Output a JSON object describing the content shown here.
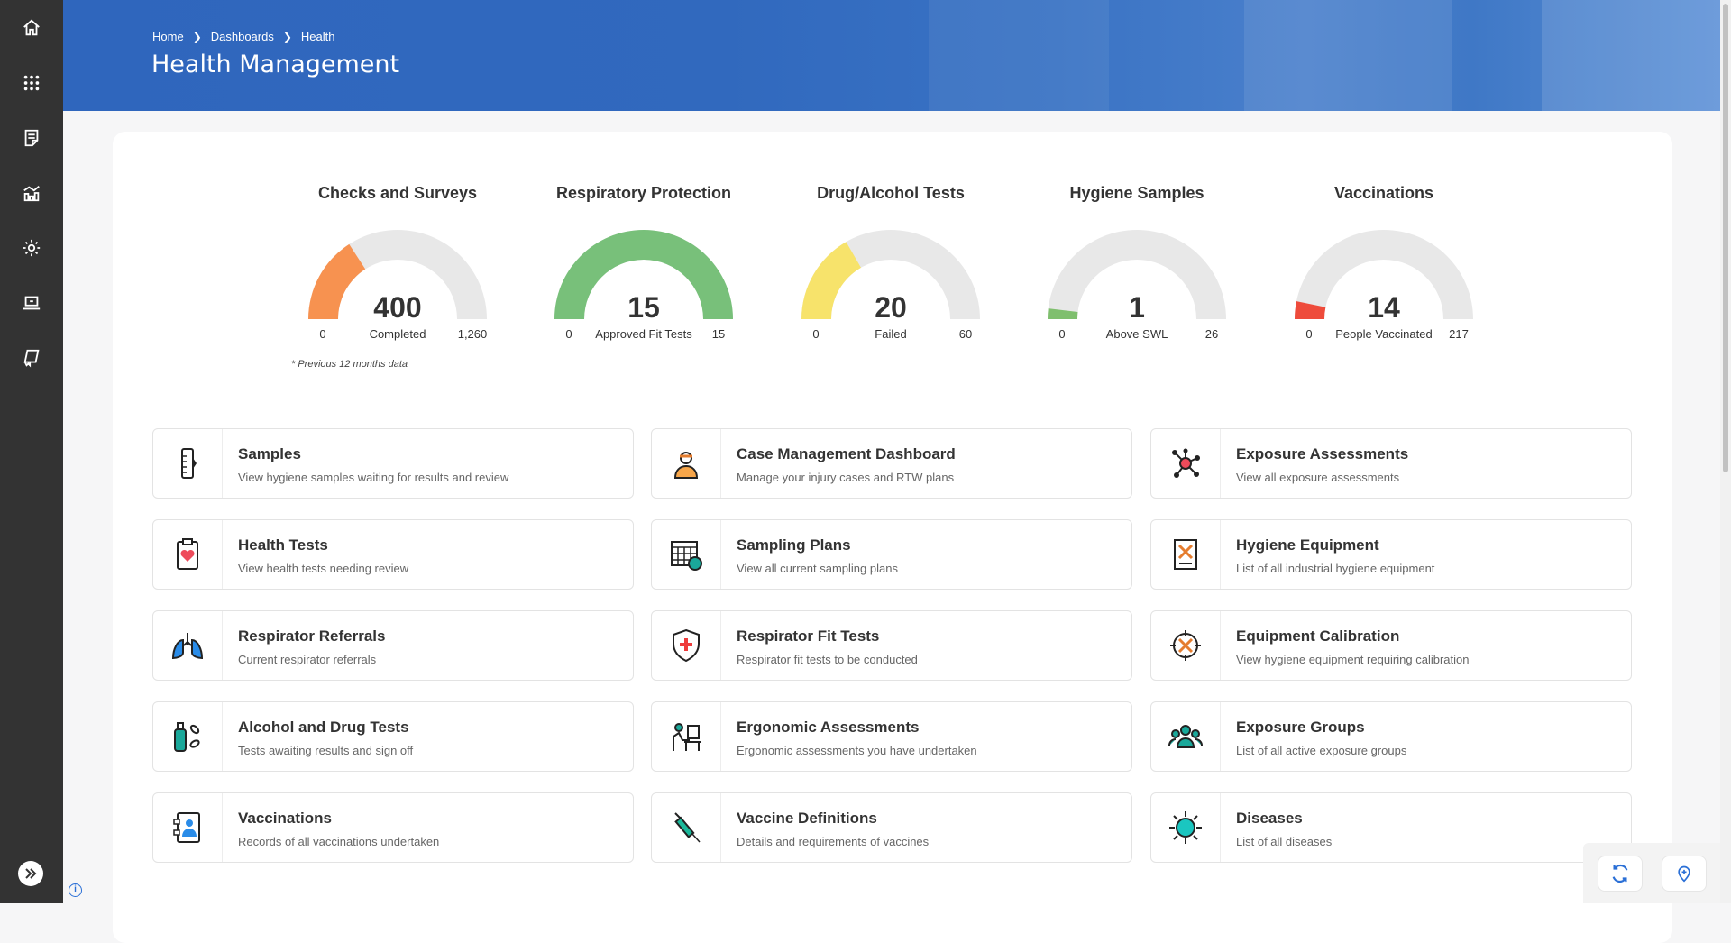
{
  "breadcrumb": [
    "Home",
    "Dashboards",
    "Health"
  ],
  "page_title": "Health Management",
  "sidebar": {
    "items": [
      "home-icon",
      "apps-grid-icon",
      "document-icon",
      "chart-icon",
      "gear-icon",
      "laptop-icon",
      "book-icon"
    ]
  },
  "gauges": [
    {
      "title": "Checks and Surveys",
      "value": 400,
      "value_text": "400",
      "label": "Completed",
      "min": "0",
      "max": 1260,
      "max_text": "1,260",
      "color": "#f79250"
    },
    {
      "title": "Respiratory Protection",
      "value": 15,
      "value_text": "15",
      "label": "Approved Fit Tests",
      "min": "0",
      "max": 15,
      "max_text": "15",
      "color": "#78c07a"
    },
    {
      "title": "Drug/Alcohol Tests",
      "value": 20,
      "value_text": "20",
      "label": "Failed",
      "min": "0",
      "max": 60,
      "max_text": "60",
      "color": "#f7e36b"
    },
    {
      "title": "Hygiene Samples",
      "value": 1,
      "value_text": "1",
      "label": "Above SWL",
      "min": "0",
      "max": 26,
      "max_text": "26",
      "color": "#7fbf6e"
    },
    {
      "title": "Vaccinations",
      "value": 14,
      "value_text": "14",
      "label": "People Vaccinated",
      "min": "0",
      "max": 217,
      "max_text": "217",
      "color": "#ee4b3b"
    }
  ],
  "gauge_track_color": "#e8e8e8",
  "footnote": "* Previous 12 months data",
  "cards": [
    {
      "title": "Samples",
      "desc": "View hygiene samples waiting for results and review",
      "icon": "test-tube-icon"
    },
    {
      "title": "Case Management Dashboard",
      "desc": "Manage your injury cases and RTW plans",
      "icon": "worker-icon"
    },
    {
      "title": "Exposure Assessments",
      "desc": "View all exposure assessments",
      "icon": "molecule-icon"
    },
    {
      "title": "Health Tests",
      "desc": "View health tests needing review",
      "icon": "clipboard-heart-icon"
    },
    {
      "title": "Sampling Plans",
      "desc": "View all current sampling plans",
      "icon": "calendar-icon"
    },
    {
      "title": "Hygiene Equipment",
      "desc": "List of all industrial hygiene equipment",
      "icon": "tools-document-icon"
    },
    {
      "title": "Respirator Referrals",
      "desc": "Current respirator referrals",
      "icon": "lungs-icon"
    },
    {
      "title": "Respirator Fit Tests",
      "desc": "Respirator fit tests to be conducted",
      "icon": "shield-cross-icon"
    },
    {
      "title": "Equipment Calibration",
      "desc": "View hygiene equipment requiring calibration",
      "icon": "calibration-icon"
    },
    {
      "title": "Alcohol and Drug Tests",
      "desc": "Tests awaiting results and sign off",
      "icon": "bottle-pills-icon"
    },
    {
      "title": "Ergonomic Assessments",
      "desc": "Ergonomic assessments you have undertaken",
      "icon": "desk-worker-icon"
    },
    {
      "title": "Exposure Groups",
      "desc": "List of all active exposure groups",
      "icon": "group-icon"
    },
    {
      "title": "Vaccinations",
      "desc": "Records of all vaccinations undertaken",
      "icon": "contact-book-icon"
    },
    {
      "title": "Vaccine Definitions",
      "desc": "Details and requirements of vaccines",
      "icon": "syringe-icon"
    },
    {
      "title": "Diseases",
      "desc": "List of all diseases",
      "icon": "virus-icon"
    }
  ],
  "actions": [
    {
      "icon": "refresh-icon"
    },
    {
      "icon": "add-location-icon"
    }
  ],
  "accent": "#2a6fd6"
}
